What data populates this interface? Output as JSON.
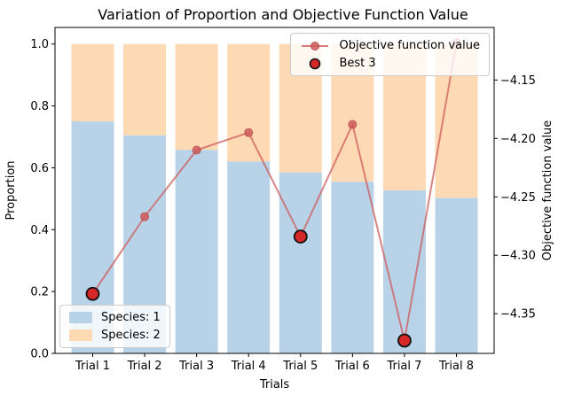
{
  "chart_data": {
    "type": "bar",
    "subtype": "stacked-bars-with-line-overlay",
    "title": "Variation of Proportion and Objective Function Value",
    "xlabel": "Trials",
    "ylabel_left": "Proportion",
    "ylabel_right": "Objective function value",
    "categories": [
      "Trial 1",
      "Trial 2",
      "Trial 3",
      "Trial 4",
      "Trial 5",
      "Trial 6",
      "Trial 7",
      "Trial 8"
    ],
    "stacked_bars": {
      "series": [
        {
          "name": "Species: 1",
          "color": "#b8d3e8",
          "values": [
            0.75,
            0.705,
            0.658,
            0.62,
            0.585,
            0.555,
            0.527,
            0.503
          ]
        },
        {
          "name": "Species: 2",
          "color": "#fdd9b4",
          "values": [
            0.25,
            0.295,
            0.342,
            0.38,
            0.415,
            0.445,
            0.473,
            0.497
          ]
        }
      ]
    },
    "line": {
      "name": "Objective function value",
      "color": "#cd5c5c",
      "marker_edge": "#c0504f",
      "values": [
        -4.333,
        -4.267,
        -4.21,
        -4.195,
        -4.284,
        -4.188,
        -4.373,
        -4.118
      ]
    },
    "best3": {
      "name": "Best 3",
      "trial_indices": [
        0,
        4,
        6
      ],
      "fill": "#d62828",
      "edge": "#111111"
    },
    "axes": {
      "left_ylim": [
        0,
        1.0535
      ],
      "left_tick_labels": [
        "0.0",
        "0.2",
        "0.4",
        "0.6",
        "0.8",
        "1.0"
      ],
      "left_tick_values": [
        0.0,
        0.2,
        0.4,
        0.6,
        0.8,
        1.0
      ],
      "right_ylim": [
        -4.384,
        -4.105
      ],
      "right_tick_labels": [
        "−4.15",
        "−4.20",
        "−4.25",
        "−4.30",
        "−4.35"
      ],
      "right_tick_values": [
        -4.15,
        -4.2,
        -4.25,
        -4.3,
        -4.35
      ],
      "grid": false
    },
    "legend_top": {
      "position": "upper right",
      "items": [
        {
          "label": "Objective function value"
        },
        {
          "label": "Best 3"
        }
      ]
    },
    "legend_bottom": {
      "position": "lower left",
      "items": [
        {
          "label": "Species: 1"
        },
        {
          "label": "Species: 2"
        }
      ]
    }
  }
}
